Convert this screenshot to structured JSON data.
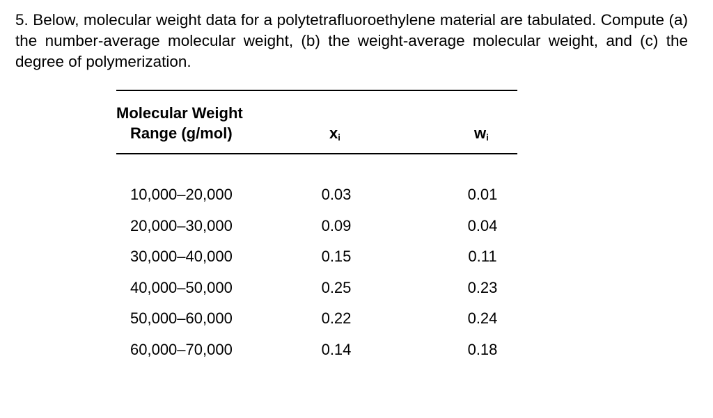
{
  "question": "5. Below, molecular weight data for a polytetrafluoroethylene material are tabulated. Compute (a) the number-average molecular weight, (b) the weight-average molecular weight, and (c) the degree of polymerization.",
  "table": {
    "header": {
      "range": [
        "Molecular Weight",
        "Range (g/mol)"
      ],
      "x": {
        "main": "x",
        "sub": "i"
      },
      "w": {
        "main": "w",
        "sub": "i"
      }
    },
    "rows": [
      [
        "10,000–20,000",
        "0.03",
        "0.01"
      ],
      [
        "20,000–30,000",
        "0.09",
        "0.04"
      ],
      [
        "30,000–40,000",
        "0.15",
        "0.11"
      ],
      [
        "40,000–50,000",
        "0.25",
        "0.23"
      ],
      [
        "50,000–60,000",
        "0.22",
        "0.24"
      ],
      [
        "60,000–70,000",
        "0.14",
        "0.18"
      ]
    ]
  }
}
